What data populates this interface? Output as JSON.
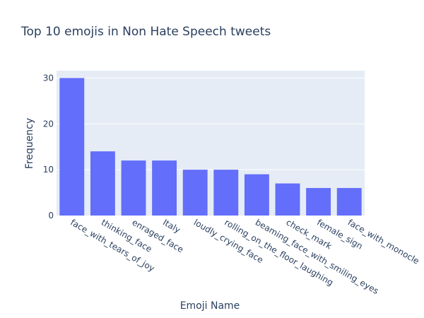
{
  "chart_data": {
    "type": "bar",
    "title": "Top 10 emojis in Non Hate Speech tweets",
    "xlabel": "Emoji Name",
    "ylabel": "Frequency",
    "categories": [
      "face_with_tears_of_joy",
      "thinking_face",
      "enraged_face",
      "Italy",
      "loudly_crying_face",
      "rolling_on_the_floor_laughing",
      "beaming_face_with_smiling_eyes",
      "check_mark",
      "female_sign",
      "face_with_monocle"
    ],
    "values": [
      30,
      14,
      12,
      12,
      10,
      10,
      9,
      7,
      6,
      6
    ],
    "ylim": [
      0,
      31.6
    ],
    "yticks": [
      0,
      10,
      20,
      30
    ],
    "grid": true,
    "bar_color": "#636efa",
    "plot_bg": "#e5ecf6"
  }
}
